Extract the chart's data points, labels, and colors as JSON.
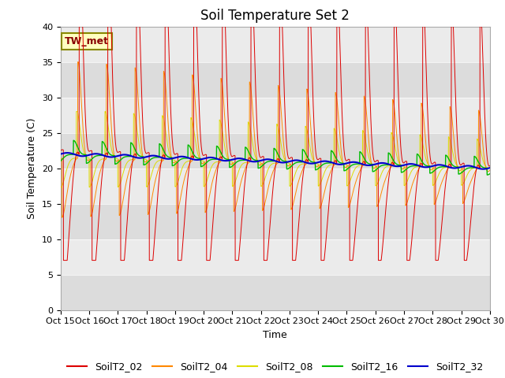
{
  "title": "Soil Temperature Set 2",
  "xlabel": "Time",
  "ylabel": "Soil Temperature (C)",
  "ylim": [
    0,
    40
  ],
  "xlim": [
    0,
    15
  ],
  "x_tick_labels": [
    "Oct 15",
    "Oct 16",
    "Oct 17",
    "Oct 18",
    "Oct 19",
    "Oct 20",
    "Oct 21",
    "Oct 22",
    "Oct 23",
    "Oct 24",
    "Oct 25",
    "Oct 26",
    "Oct 27",
    "Oct 28",
    "Oct 29",
    "Oct 30"
  ],
  "annotation_text": "TW_met",
  "annotation_bg": "#FFFFC0",
  "annotation_border": "#880000",
  "series_colors": {
    "SoilT2_02": "#DD0000",
    "SoilT2_04": "#FF8800",
    "SoilT2_08": "#DDDD00",
    "SoilT2_16": "#00BB00",
    "SoilT2_32": "#0000CC"
  },
  "band_colors": [
    "#DCDCDC",
    "#E8E8E8"
  ],
  "title_fontsize": 12,
  "axis_label_fontsize": 9,
  "tick_fontsize": 8,
  "legend_fontsize": 9
}
